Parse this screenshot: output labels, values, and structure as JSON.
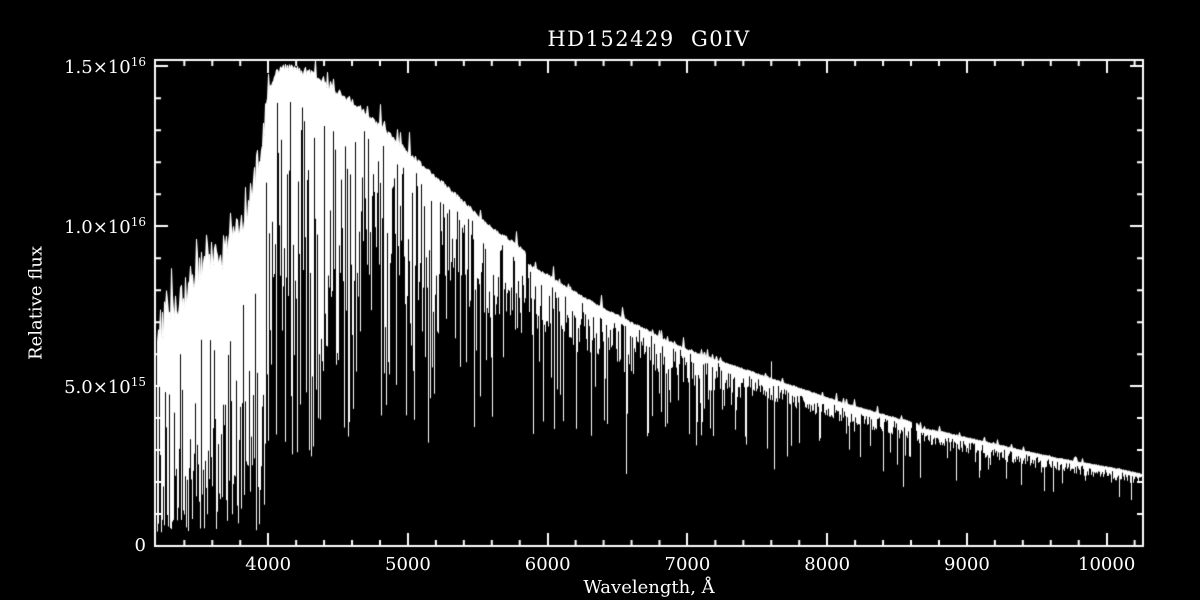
{
  "chart_data": {
    "type": "line",
    "title": "HD152429  G0IV",
    "xlabel": "Wavelength, Å",
    "ylabel": "Relative flux",
    "xlim": [
      3190,
      10260
    ],
    "ylim": [
      0,
      1.52e+16
    ],
    "x_ticks": [
      4000,
      5000,
      6000,
      7000,
      8000,
      9000,
      10000
    ],
    "x_minor_step": 200,
    "y_ticks": [
      {
        "value": 0,
        "mantissa": "0",
        "exp": ""
      },
      {
        "value": 5000000000000000.0,
        "mantissa": "5.0×10",
        "exp": "15"
      },
      {
        "value": 1e+16,
        "mantissa": "1.0×10",
        "exp": "16"
      },
      {
        "value": 1.5e+16,
        "mantissa": "1.5×10",
        "exp": "16"
      }
    ],
    "y_minor_step": 1000000000000000.0,
    "grid": false,
    "legend": null,
    "background": "#000000",
    "axis_color": "#ffffff",
    "series": [
      {
        "name": "spectrum",
        "color": "#ffffff",
        "continuum": [
          [
            3190,
            7000000000000000.0
          ],
          [
            3260,
            8000000000000000.0
          ],
          [
            3340,
            8600000000000000.0
          ],
          [
            3420,
            9000000000000000.0
          ],
          [
            3520,
            9300000000000000.0
          ],
          [
            3620,
            9700000000000000.0
          ],
          [
            3720,
            1e+16
          ],
          [
            3800,
            1.05e+16
          ],
          [
            3880,
            1.15e+16
          ],
          [
            3940,
            1.3e+16
          ],
          [
            4000,
            1.44e+16
          ],
          [
            4060,
            1.5e+16
          ],
          [
            4140,
            1.51e+16
          ],
          [
            4220,
            1.5e+16
          ],
          [
            4300,
            1.49e+16
          ],
          [
            4400,
            1.46e+16
          ],
          [
            4500,
            1.43e+16
          ],
          [
            4600,
            1.4e+16
          ],
          [
            4700,
            1.36e+16
          ],
          [
            4800,
            1.32e+16
          ],
          [
            4900,
            1.28e+16
          ],
          [
            5000,
            1.24e+16
          ],
          [
            5100,
            1.2e+16
          ],
          [
            5200,
            1.16e+16
          ],
          [
            5300,
            1.12e+16
          ],
          [
            5400,
            1.08e+16
          ],
          [
            5500,
            1.04e+16
          ],
          [
            5600,
            1e+16
          ],
          [
            5700,
            9700000000000000.0
          ],
          [
            5800,
            9400000000000000.0
          ],
          [
            5840,
            9200000000000000.0
          ],
          [
            5855,
            8850000000000000.0
          ],
          [
            6000,
            8500000000000000.0
          ],
          [
            6100,
            8200000000000000.0
          ],
          [
            6200,
            7950000000000000.0
          ],
          [
            6300,
            7700000000000000.0
          ],
          [
            6400,
            7450000000000000.0
          ],
          [
            6500,
            7250000000000000.0
          ],
          [
            6600,
            7000000000000000.0
          ],
          [
            6700,
            6800000000000000.0
          ],
          [
            6800,
            6550000000000000.0
          ],
          [
            6900,
            6350000000000000.0
          ],
          [
            7000,
            6150000000000000.0
          ],
          [
            7100,
            6000000000000000.0
          ],
          [
            7200,
            5850000000000000.0
          ],
          [
            7300,
            5700000000000000.0
          ],
          [
            7400,
            5550000000000000.0
          ],
          [
            7500,
            5400000000000000.0
          ],
          [
            7600,
            5250000000000000.0
          ],
          [
            7700,
            5100000000000000.0
          ],
          [
            7800,
            4950000000000000.0
          ],
          [
            7900,
            4800000000000000.0
          ],
          [
            8000,
            4650000000000000.0
          ],
          [
            8100,
            4500000000000000.0
          ],
          [
            8200,
            4380000000000000.0
          ],
          [
            8300,
            4250000000000000.0
          ],
          [
            8400,
            4120000000000000.0
          ],
          [
            8500,
            4000000000000000.0
          ],
          [
            8600,
            3900000000000000.0
          ],
          [
            8640,
            3850000000000000.0
          ],
          [
            8665,
            3700000000000000.0
          ],
          [
            8800,
            3600000000000000.0
          ],
          [
            8900,
            3500000000000000.0
          ],
          [
            9000,
            3400000000000000.0
          ],
          [
            9100,
            3300000000000000.0
          ],
          [
            9200,
            3200000000000000.0
          ],
          [
            9300,
            3100000000000000.0
          ],
          [
            9400,
            3000000000000000.0
          ],
          [
            9500,
            2900000000000000.0
          ],
          [
            9600,
            2800000000000000.0
          ],
          [
            9700,
            2720000000000000.0
          ],
          [
            9800,
            2640000000000000.0
          ],
          [
            9900,
            2560000000000000.0
          ],
          [
            10000,
            2480000000000000.0
          ],
          [
            10100,
            2400000000000000.0
          ],
          [
            10260,
            2250000000000000.0
          ]
        ],
        "absorption_lines": [
          {
            "wavelength": 3934,
            "width": 20,
            "depth": 0.05
          },
          {
            "wavelength": 3969,
            "width": 18,
            "depth": 0.06
          },
          {
            "wavelength": 4102,
            "width": 14,
            "depth": 0.2
          },
          {
            "wavelength": 4227,
            "width": 9,
            "depth": 0.28
          },
          {
            "wavelength": 4305,
            "width": 12,
            "depth": 0.3
          },
          {
            "wavelength": 4340,
            "width": 14,
            "depth": 0.2
          },
          {
            "wavelength": 4384,
            "width": 9,
            "depth": 0.32
          },
          {
            "wavelength": 4861,
            "width": 14,
            "depth": 0.1
          },
          {
            "wavelength": 5175,
            "width": 16,
            "depth": 0.38
          },
          {
            "wavelength": 5270,
            "width": 10,
            "depth": 0.45
          },
          {
            "wavelength": 5893,
            "width": 14,
            "depth": 0.3
          },
          {
            "wavelength": 6563,
            "width": 14,
            "depth": 0.12
          },
          {
            "wavelength": 6872,
            "width": 12,
            "depth": 0.5
          },
          {
            "wavelength": 7620,
            "width": 16,
            "depth": 0.45
          },
          {
            "wavelength": 8498,
            "width": 10,
            "depth": 0.55
          },
          {
            "wavelength": 8542,
            "width": 12,
            "depth": 0.45
          },
          {
            "wavelength": 8662,
            "width": 12,
            "depth": 0.45
          }
        ],
        "gaps": [
          [
            5840,
            5853
          ],
          [
            8605,
            8632
          ]
        ],
        "emission_spikes": [
          {
            "wavelength": 7601,
            "height": 1.1
          }
        ],
        "noise_regions": [
          {
            "from": 3190,
            "to": 3420,
            "top_jitter": 0.18,
            "floor_min": 0.15,
            "floor_max": 0.7,
            "deep_prob": 0.5,
            "deep_min": 0.05
          },
          {
            "from": 3420,
            "to": 3700,
            "top_jitter": 0.12,
            "floor_min": 0.2,
            "floor_max": 0.75,
            "deep_prob": 0.45,
            "deep_min": 0.05
          },
          {
            "from": 3700,
            "to": 3980,
            "top_jitter": 0.08,
            "floor_min": 0.22,
            "floor_max": 0.78,
            "deep_prob": 0.45,
            "deep_min": 0.04
          },
          {
            "from": 3980,
            "to": 4620,
            "top_jitter": 0.015,
            "floor_min": 0.5,
            "floor_max": 0.93,
            "deep_prob": 0.35,
            "deep_min": 0.18
          },
          {
            "from": 4620,
            "to": 5200,
            "top_jitter": 0.012,
            "floor_min": 0.6,
            "floor_max": 0.96,
            "deep_prob": 0.28,
            "deep_min": 0.25
          },
          {
            "from": 5200,
            "to": 5840,
            "top_jitter": 0.01,
            "floor_min": 0.7,
            "floor_max": 0.97,
            "deep_prob": 0.2,
            "deep_min": 0.35
          },
          {
            "from": 5840,
            "to": 6600,
            "top_jitter": 0.008,
            "floor_min": 0.78,
            "floor_max": 0.98,
            "deep_prob": 0.16,
            "deep_min": 0.42
          },
          {
            "from": 6600,
            "to": 7400,
            "top_jitter": 0.007,
            "floor_min": 0.82,
            "floor_max": 0.985,
            "deep_prob": 0.13,
            "deep_min": 0.5
          },
          {
            "from": 7400,
            "to": 8500,
            "top_jitter": 0.006,
            "floor_min": 0.86,
            "floor_max": 0.97,
            "deep_prob": 0.1,
            "deep_min": 0.55
          },
          {
            "from": 8500,
            "to": 10260,
            "top_jitter": 0.01,
            "floor_min": 0.84,
            "floor_max": 0.96,
            "deep_prob": 0.12,
            "deep_min": 0.55
          }
        ]
      }
    ]
  }
}
